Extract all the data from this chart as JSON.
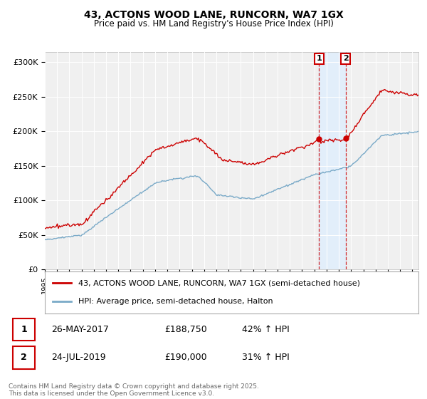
{
  "title": "43, ACTONS WOOD LANE, RUNCORN, WA7 1GX",
  "subtitle": "Price paid vs. HM Land Registry's House Price Index (HPI)",
  "ylabel_ticks": [
    "£0",
    "£50K",
    "£100K",
    "£150K",
    "£200K",
    "£250K",
    "£300K"
  ],
  "ytick_values": [
    0,
    50000,
    100000,
    150000,
    200000,
    250000,
    300000
  ],
  "ylim": [
    0,
    315000
  ],
  "red_color": "#cc0000",
  "blue_color": "#7aaac8",
  "shade_color": "#ddeeff",
  "bg_color": "#f0f0f0",
  "legend_label_red": "43, ACTONS WOOD LANE, RUNCORN, WA7 1GX (semi-detached house)",
  "legend_label_blue": "HPI: Average price, semi-detached house, Halton",
  "marker1_date_x": 2017.39,
  "marker2_date_x": 2019.56,
  "footer": "Contains HM Land Registry data © Crown copyright and database right 2025.\nThis data is licensed under the Open Government Licence v3.0.",
  "xmin": 1995,
  "xmax": 2025.5
}
